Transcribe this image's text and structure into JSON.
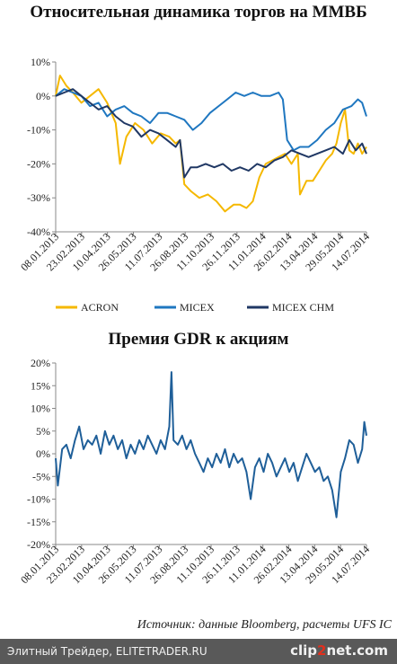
{
  "chart_data": [
    {
      "type": "line",
      "title": "Относительная динамика торгов на ММВБ",
      "ylim": [
        -40,
        10
      ],
      "yticks": [
        "10%",
        "0%",
        "-10%",
        "-20%",
        "-30%",
        "-40%"
      ],
      "yvalues": [
        10,
        0,
        -10,
        -20,
        -30,
        -40
      ],
      "xticks": [
        "08.01.2013",
        "23.02.2013",
        "10.04.2013",
        "26.05.2013",
        "11.07.2013",
        "26.08.2013",
        "11.10.2013",
        "26.11.2013",
        "11.01.2014",
        "26.02.2014",
        "13.04.2014",
        "29.05.2014",
        "14.07.2014"
      ],
      "legend_position": "bottom",
      "series": [
        {
          "name": "ACRON",
          "color": "#f5b800",
          "values": [
            [
              0,
              0
            ],
            [
              2,
              6
            ],
            [
              5,
              3
            ],
            [
              8,
              1
            ],
            [
              12,
              -2
            ],
            [
              16,
              0
            ],
            [
              20,
              2
            ],
            [
              24,
              -2
            ],
            [
              28,
              -8
            ],
            [
              30,
              -20
            ],
            [
              33,
              -12
            ],
            [
              37,
              -8
            ],
            [
              41,
              -10
            ],
            [
              45,
              -14
            ],
            [
              49,
              -11
            ],
            [
              53,
              -12
            ],
            [
              56,
              -14
            ],
            [
              58,
              -13
            ],
            [
              60,
              -26
            ],
            [
              63,
              -28
            ],
            [
              67,
              -30
            ],
            [
              71,
              -29
            ],
            [
              75,
              -31
            ],
            [
              79,
              -34
            ],
            [
              83,
              -32
            ],
            [
              86,
              -32
            ],
            [
              89,
              -33
            ],
            [
              92,
              -31
            ],
            [
              95,
              -24
            ],
            [
              98,
              -20
            ],
            [
              101,
              -19
            ],
            [
              104,
              -18
            ],
            [
              107,
              -17
            ],
            [
              110,
              -20
            ],
            [
              113,
              -17
            ],
            [
              114,
              -29
            ],
            [
              117,
              -25
            ],
            [
              120,
              -25
            ],
            [
              123,
              -22
            ],
            [
              126,
              -19
            ],
            [
              129,
              -17
            ],
            [
              131,
              -14
            ],
            [
              133,
              -8
            ],
            [
              135,
              -4
            ],
            [
              137,
              -16
            ],
            [
              139,
              -17
            ],
            [
              141,
              -14
            ],
            [
              143,
              -17
            ],
            [
              145,
              -15
            ]
          ]
        },
        {
          "name": "MICEX",
          "color": "#1f77c0",
          "values": [
            [
              0,
              0
            ],
            [
              4,
              2
            ],
            [
              8,
              1
            ],
            [
              12,
              0
            ],
            [
              16,
              -3
            ],
            [
              20,
              -2
            ],
            [
              24,
              -6
            ],
            [
              28,
              -4
            ],
            [
              32,
              -3
            ],
            [
              36,
              -5
            ],
            [
              40,
              -6
            ],
            [
              44,
              -8
            ],
            [
              48,
              -5
            ],
            [
              52,
              -5
            ],
            [
              56,
              -6
            ],
            [
              60,
              -7
            ],
            [
              64,
              -10
            ],
            [
              68,
              -8
            ],
            [
              72,
              -5
            ],
            [
              76,
              -3
            ],
            [
              80,
              -1
            ],
            [
              84,
              1
            ],
            [
              88,
              0
            ],
            [
              92,
              1
            ],
            [
              96,
              0
            ],
            [
              100,
              0
            ],
            [
              104,
              1
            ],
            [
              106,
              -1
            ],
            [
              108,
              -13
            ],
            [
              111,
              -16
            ],
            [
              114,
              -15
            ],
            [
              118,
              -15
            ],
            [
              122,
              -13
            ],
            [
              126,
              -10
            ],
            [
              130,
              -8
            ],
            [
              134,
              -4
            ],
            [
              138,
              -3
            ],
            [
              141,
              -1
            ],
            [
              143,
              -2
            ],
            [
              145,
              -6
            ]
          ]
        },
        {
          "name": "MICEX CHM",
          "color": "#203864",
          "values": [
            [
              0,
              0
            ],
            [
              4,
              1
            ],
            [
              8,
              2
            ],
            [
              12,
              0
            ],
            [
              16,
              -2
            ],
            [
              20,
              -4
            ],
            [
              24,
              -3
            ],
            [
              28,
              -6
            ],
            [
              32,
              -8
            ],
            [
              36,
              -9
            ],
            [
              40,
              -12
            ],
            [
              44,
              -10
            ],
            [
              48,
              -11
            ],
            [
              52,
              -13
            ],
            [
              56,
              -15
            ],
            [
              58,
              -13
            ],
            [
              60,
              -24
            ],
            [
              63,
              -21
            ],
            [
              66,
              -21
            ],
            [
              70,
              -20
            ],
            [
              74,
              -21
            ],
            [
              78,
              -20
            ],
            [
              82,
              -22
            ],
            [
              86,
              -21
            ],
            [
              90,
              -22
            ],
            [
              94,
              -20
            ],
            [
              98,
              -21
            ],
            [
              102,
              -19
            ],
            [
              106,
              -18
            ],
            [
              110,
              -16
            ],
            [
              114,
              -17
            ],
            [
              118,
              -18
            ],
            [
              122,
              -17
            ],
            [
              126,
              -16
            ],
            [
              130,
              -15
            ],
            [
              134,
              -17
            ],
            [
              137,
              -13
            ],
            [
              140,
              -16
            ],
            [
              143,
              -14
            ],
            [
              145,
              -17
            ]
          ]
        }
      ]
    },
    {
      "type": "line",
      "title": "Премия GDR к акциям",
      "ylim": [
        -20,
        20
      ],
      "yticks": [
        "20%",
        "15%",
        "10%",
        "5%",
        "0%",
        "-5%",
        "-10%",
        "-15%",
        "-20%"
      ],
      "yvalues": [
        20,
        15,
        10,
        5,
        0,
        -5,
        -10,
        -15,
        -20
      ],
      "xticks": [
        "08.01.2013",
        "23.02.2013",
        "10.04.2013",
        "26.05.2013",
        "11.07.2013",
        "26.08.2013",
        "11.10.2013",
        "26.11.2013",
        "11.01.2014",
        "26.02.2014",
        "13.04.2014",
        "29.05.2014",
        "14.07.2014"
      ],
      "series": [
        {
          "name": "",
          "color": "#1f5f99",
          "values": [
            [
              0,
              -1
            ],
            [
              1,
              -7
            ],
            [
              3,
              1
            ],
            [
              5,
              2
            ],
            [
              7,
              -1
            ],
            [
              9,
              3
            ],
            [
              11,
              6
            ],
            [
              13,
              1
            ],
            [
              15,
              3
            ],
            [
              17,
              2
            ],
            [
              19,
              4
            ],
            [
              21,
              0
            ],
            [
              23,
              5
            ],
            [
              25,
              2
            ],
            [
              27,
              4
            ],
            [
              29,
              1
            ],
            [
              31,
              3
            ],
            [
              33,
              -1
            ],
            [
              35,
              2
            ],
            [
              37,
              0
            ],
            [
              39,
              3
            ],
            [
              41,
              1
            ],
            [
              43,
              4
            ],
            [
              45,
              2
            ],
            [
              47,
              0
            ],
            [
              49,
              3
            ],
            [
              51,
              1
            ],
            [
              53,
              6
            ],
            [
              54,
              18
            ],
            [
              55,
              3
            ],
            [
              57,
              2
            ],
            [
              59,
              4
            ],
            [
              61,
              1
            ],
            [
              63,
              3
            ],
            [
              65,
              0
            ],
            [
              67,
              -2
            ],
            [
              69,
              -4
            ],
            [
              71,
              -1
            ],
            [
              73,
              -3
            ],
            [
              75,
              0
            ],
            [
              77,
              -2
            ],
            [
              79,
              1
            ],
            [
              81,
              -3
            ],
            [
              83,
              0
            ],
            [
              85,
              -2
            ],
            [
              87,
              -1
            ],
            [
              89,
              -4
            ],
            [
              91,
              -10
            ],
            [
              93,
              -3
            ],
            [
              95,
              -1
            ],
            [
              97,
              -4
            ],
            [
              99,
              0
            ],
            [
              101,
              -2
            ],
            [
              103,
              -5
            ],
            [
              105,
              -3
            ],
            [
              107,
              -1
            ],
            [
              109,
              -4
            ],
            [
              111,
              -2
            ],
            [
              113,
              -6
            ],
            [
              115,
              -3
            ],
            [
              117,
              0
            ],
            [
              119,
              -2
            ],
            [
              121,
              -4
            ],
            [
              123,
              -3
            ],
            [
              125,
              -6
            ],
            [
              127,
              -5
            ],
            [
              129,
              -8
            ],
            [
              131,
              -14
            ],
            [
              133,
              -4
            ],
            [
              135,
              -1
            ],
            [
              137,
              3
            ],
            [
              139,
              2
            ],
            [
              141,
              -2
            ],
            [
              143,
              1
            ],
            [
              144,
              7
            ],
            [
              145,
              4
            ]
          ]
        }
      ]
    }
  ],
  "source": "Источник: данные Bloomberg, расчеты UFS IC",
  "footer": {
    "left": "Элитный Трейдер, ELITETRADER.RU",
    "logo_a": "clip",
    "logo_b": "2",
    "logo_c": "net.com"
  }
}
